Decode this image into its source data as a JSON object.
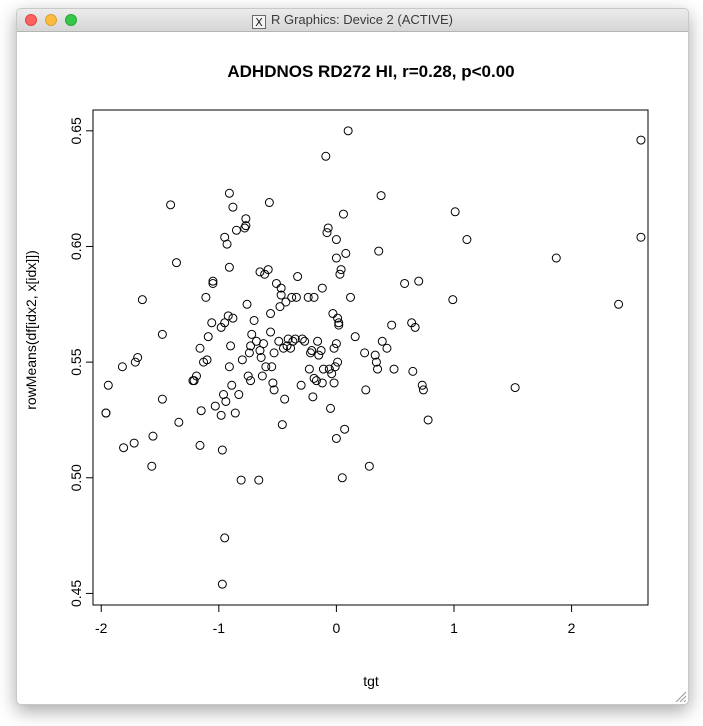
{
  "window": {
    "title": "R Graphics: Device 2 (ACTIVE)",
    "icon": "x11-icon"
  },
  "chart_data": {
    "type": "scatter",
    "title": "ADHDNOS RD272 HI, r=0.28, p<0.00",
    "xlabel": "tgt",
    "ylabel": "rowMeans(df[idx2, x[idx]])",
    "xlim": [
      -2.07,
      2.65
    ],
    "ylim": [
      0.445,
      0.659
    ],
    "x_ticks": [
      -2,
      -1,
      0,
      1,
      2
    ],
    "y_ticks": [
      0.45,
      0.5,
      0.55,
      0.6,
      0.65
    ],
    "x_tick_labels": [
      "-2",
      "-1",
      "0",
      "1",
      "2"
    ],
    "y_tick_labels": [
      "0.45",
      "0.50",
      "0.55",
      "0.60",
      "0.65"
    ],
    "grid": false,
    "marker": "open-circle",
    "points": [
      [
        -1.96,
        0.528
      ],
      [
        -1.96,
        0.528
      ],
      [
        -1.94,
        0.54
      ],
      [
        -1.82,
        0.548
      ],
      [
        -1.81,
        0.513
      ],
      [
        -1.72,
        0.515
      ],
      [
        -1.71,
        0.55
      ],
      [
        -1.69,
        0.552
      ],
      [
        -1.65,
        0.577
      ],
      [
        -1.57,
        0.505
      ],
      [
        -1.56,
        0.518
      ],
      [
        -1.48,
        0.562
      ],
      [
        -1.48,
        0.534
      ],
      [
        -1.41,
        0.618
      ],
      [
        -1.36,
        0.593
      ],
      [
        -1.34,
        0.524
      ],
      [
        -1.22,
        0.542
      ],
      [
        -1.21,
        0.542
      ],
      [
        -1.19,
        0.544
      ],
      [
        -1.16,
        0.556
      ],
      [
        -1.16,
        0.514
      ],
      [
        -1.15,
        0.529
      ],
      [
        -1.13,
        0.55
      ],
      [
        -1.11,
        0.578
      ],
      [
        -1.1,
        0.551
      ],
      [
        -1.09,
        0.561
      ],
      [
        -1.06,
        0.567
      ],
      [
        -1.05,
        0.584
      ],
      [
        -1.05,
        0.585
      ],
      [
        -1.03,
        0.531
      ],
      [
        -0.98,
        0.565
      ],
      [
        -0.98,
        0.527
      ],
      [
        -0.97,
        0.454
      ],
      [
        -0.97,
        0.512
      ],
      [
        -0.96,
        0.536
      ],
      [
        -0.95,
        0.567
      ],
      [
        -0.95,
        0.474
      ],
      [
        -0.95,
        0.604
      ],
      [
        -0.94,
        0.533
      ],
      [
        -0.93,
        0.601
      ],
      [
        -0.92,
        0.57
      ],
      [
        -0.91,
        0.623
      ],
      [
        -0.91,
        0.591
      ],
      [
        -0.91,
        0.548
      ],
      [
        -0.9,
        0.557
      ],
      [
        -0.89,
        0.54
      ],
      [
        -0.88,
        0.617
      ],
      [
        -0.88,
        0.569
      ],
      [
        -0.86,
        0.528
      ],
      [
        -0.85,
        0.607
      ],
      [
        -0.83,
        0.536
      ],
      [
        -0.81,
        0.499
      ],
      [
        -0.8,
        0.551
      ],
      [
        -0.78,
        0.608
      ],
      [
        -0.77,
        0.612
      ],
      [
        -0.77,
        0.609
      ],
      [
        -0.76,
        0.575
      ],
      [
        -0.75,
        0.544
      ],
      [
        -0.74,
        0.554
      ],
      [
        -0.73,
        0.557
      ],
      [
        -0.73,
        0.542
      ],
      [
        -0.72,
        0.562
      ],
      [
        -0.7,
        0.568
      ],
      [
        -0.68,
        0.559
      ],
      [
        -0.66,
        0.499
      ],
      [
        -0.65,
        0.589
      ],
      [
        -0.65,
        0.555
      ],
      [
        -0.64,
        0.552
      ],
      [
        -0.63,
        0.544
      ],
      [
        -0.62,
        0.558
      ],
      [
        -0.61,
        0.588
      ],
      [
        -0.6,
        0.548
      ],
      [
        -0.58,
        0.59
      ],
      [
        -0.57,
        0.619
      ],
      [
        -0.56,
        0.563
      ],
      [
        -0.56,
        0.571
      ],
      [
        -0.55,
        0.548
      ],
      [
        -0.54,
        0.541
      ],
      [
        -0.53,
        0.554
      ],
      [
        -0.53,
        0.538
      ],
      [
        -0.51,
        0.584
      ],
      [
        -0.49,
        0.559
      ],
      [
        -0.48,
        0.574
      ],
      [
        -0.47,
        0.582
      ],
      [
        -0.47,
        0.579
      ],
      [
        -0.46,
        0.523
      ],
      [
        -0.45,
        0.556
      ],
      [
        -0.44,
        0.534
      ],
      [
        -0.43,
        0.576
      ],
      [
        -0.42,
        0.557
      ],
      [
        -0.41,
        0.56
      ],
      [
        -0.39,
        0.556
      ],
      [
        -0.38,
        0.578
      ],
      [
        -0.37,
        0.559
      ],
      [
        -0.35,
        0.56
      ],
      [
        -0.34,
        0.578
      ],
      [
        -0.33,
        0.587
      ],
      [
        -0.3,
        0.54
      ],
      [
        -0.29,
        0.56
      ],
      [
        -0.27,
        0.559
      ],
      [
        -0.24,
        0.578
      ],
      [
        -0.23,
        0.547
      ],
      [
        -0.22,
        0.554
      ],
      [
        -0.21,
        0.555
      ],
      [
        -0.2,
        0.535
      ],
      [
        -0.19,
        0.578
      ],
      [
        -0.19,
        0.543
      ],
      [
        -0.17,
        0.542
      ],
      [
        -0.16,
        0.559
      ],
      [
        -0.15,
        0.553
      ],
      [
        -0.13,
        0.555
      ],
      [
        -0.12,
        0.582
      ],
      [
        -0.12,
        0.541
      ],
      [
        -0.11,
        0.547
      ],
      [
        -0.09,
        0.639
      ],
      [
        -0.08,
        0.606
      ],
      [
        -0.07,
        0.608
      ],
      [
        -0.06,
        0.547
      ],
      [
        -0.05,
        0.53
      ],
      [
        -0.04,
        0.545
      ],
      [
        -0.03,
        0.571
      ],
      [
        -0.02,
        0.556
      ],
      [
        -0.02,
        0.541
      ],
      [
        -0.01,
        0.548
      ],
      [
        0.0,
        0.517
      ],
      [
        0.0,
        0.595
      ],
      [
        0.0,
        0.603
      ],
      [
        0.0,
        0.558
      ],
      [
        0.01,
        0.569
      ],
      [
        0.01,
        0.55
      ],
      [
        0.02,
        0.566
      ],
      [
        0.02,
        0.567
      ],
      [
        0.03,
        0.588
      ],
      [
        0.04,
        0.59
      ],
      [
        0.05,
        0.5
      ],
      [
        0.06,
        0.614
      ],
      [
        0.07,
        0.521
      ],
      [
        0.08,
        0.597
      ],
      [
        0.1,
        0.65
      ],
      [
        0.12,
        0.578
      ],
      [
        0.16,
        0.561
      ],
      [
        0.24,
        0.554
      ],
      [
        0.25,
        0.538
      ],
      [
        0.28,
        0.505
      ],
      [
        0.33,
        0.553
      ],
      [
        0.34,
        0.55
      ],
      [
        0.35,
        0.547
      ],
      [
        0.36,
        0.598
      ],
      [
        0.38,
        0.622
      ],
      [
        0.39,
        0.559
      ],
      [
        0.43,
        0.556
      ],
      [
        0.47,
        0.566
      ],
      [
        0.49,
        0.547
      ],
      [
        0.58,
        0.584
      ],
      [
        0.64,
        0.567
      ],
      [
        0.65,
        0.546
      ],
      [
        0.67,
        0.565
      ],
      [
        0.7,
        0.585
      ],
      [
        0.73,
        0.54
      ],
      [
        0.74,
        0.538
      ],
      [
        0.78,
        0.525
      ],
      [
        0.99,
        0.577
      ],
      [
        1.01,
        0.615
      ],
      [
        1.11,
        0.603
      ],
      [
        1.52,
        0.539
      ],
      [
        1.87,
        0.595
      ],
      [
        2.4,
        0.575
      ],
      [
        2.59,
        0.646
      ],
      [
        2.59,
        0.604
      ]
    ]
  }
}
